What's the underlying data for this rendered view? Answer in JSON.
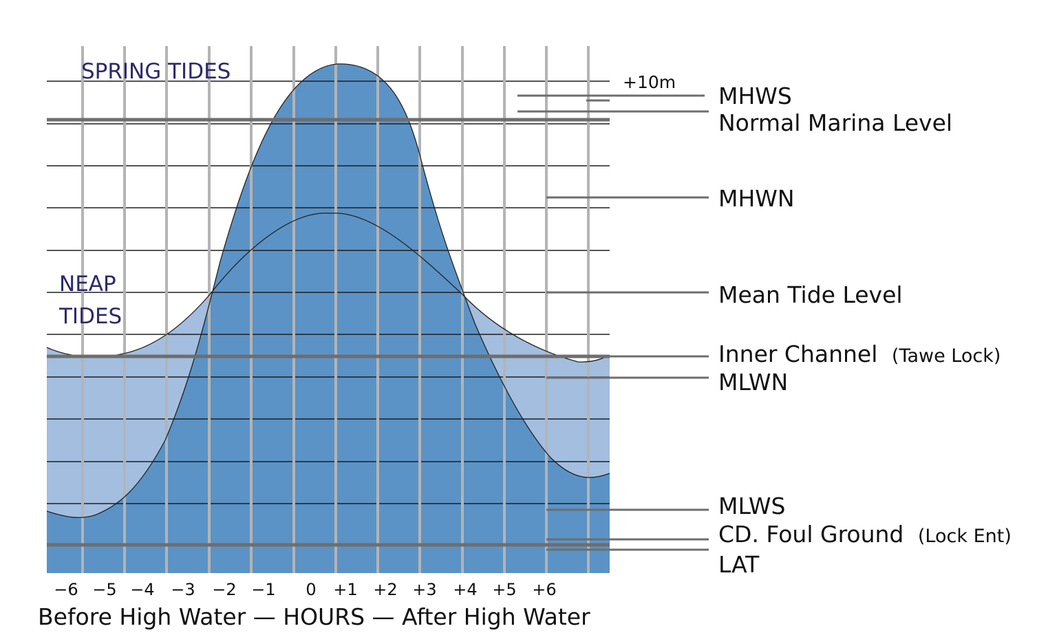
{
  "colors": {
    "spring_fill": "#5b93c6",
    "neap_fill": "#a3bedf",
    "grid_vertical": "#b4b4b4",
    "grid_horizontal": "#1e1e1e",
    "marker_line": "#6e6e6e",
    "title_color": "#2b2a6b"
  },
  "titles": {
    "spring": "SPRING TIDES",
    "neap_line1": "NEAP",
    "neap_line2": "TIDES"
  },
  "scale_label": "+10m",
  "x_axis": {
    "ticks": [
      "−6",
      "−5",
      "−4",
      "−3",
      "−2",
      "−1",
      "0",
      "+1",
      "+2",
      "+3",
      "+4",
      "+5",
      "+6"
    ],
    "caption": "Before High Water — HOURS — After High Water"
  },
  "levels": [
    {
      "name": "mhws",
      "label": "MHWS",
      "note": ""
    },
    {
      "name": "normal-marina-level",
      "label": "Normal Marina Level",
      "note": ""
    },
    {
      "name": "mhwn",
      "label": "MHWN",
      "note": ""
    },
    {
      "name": "mean-tide-level",
      "label": "Mean Tide Level",
      "note": ""
    },
    {
      "name": "inner-channel",
      "label": "Inner Channel",
      "note": "(Tawe Lock)"
    },
    {
      "name": "mlwn",
      "label": "MLWN",
      "note": ""
    },
    {
      "name": "mlws",
      "label": "MLWS",
      "note": ""
    },
    {
      "name": "cd-foul-ground",
      "label": "CD. Foul Ground",
      "note": "(Lock Ent)"
    },
    {
      "name": "lat",
      "label": "LAT",
      "note": ""
    }
  ]
}
